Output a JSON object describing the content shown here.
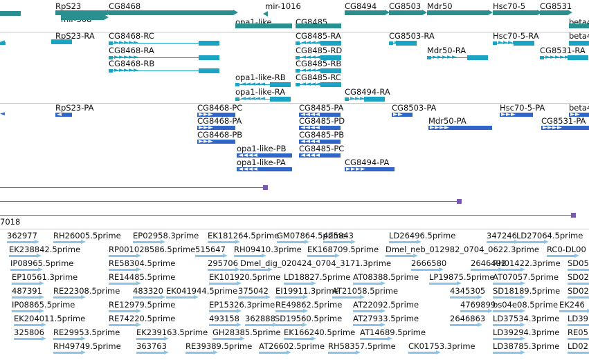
{
  "genes": [
    {
      "label": "RpS23",
      "color": "#2a8f8f"
    },
    {
      "label": "mir-308",
      "color": "#2a8f8f"
    },
    {
      "label": "CG8468",
      "color": "#2a8f8f"
    },
    {
      "label": "mir-1016",
      "color": "#2a8f8f"
    },
    {
      "label": "CG8494",
      "color": "#2a8f8f"
    },
    {
      "label": "CG8503",
      "color": "#2a8f8f"
    },
    {
      "label": "Mdr50",
      "color": "#2a8f8f"
    },
    {
      "label": "Hsc70-5",
      "color": "#2a8f8f"
    },
    {
      "label": "CG8531",
      "color": "#2a8f8f"
    },
    {
      "label": "opa1-like",
      "color": "#2a8f8f"
    },
    {
      "label": "CG8485",
      "color": "#2a8f8f"
    },
    {
      "label": "beta4",
      "color": "#2a8f8f"
    }
  ],
  "transcripts": [
    {
      "label": "RpS23-RA"
    },
    {
      "label": "CG8468-RC"
    },
    {
      "label": "CG8485-RA"
    },
    {
      "label": "CG8503-RA"
    },
    {
      "label": "Hsc70-5-RA"
    },
    {
      "label": "beta4"
    },
    {
      "label": "CG8468-RA"
    },
    {
      "label": "CG8485-RD"
    },
    {
      "label": "Mdr50-RA"
    },
    {
      "label": "CG8531-RA"
    },
    {
      "label": "CG8468-RB"
    },
    {
      "label": "CG8485-RB"
    },
    {
      "label": "opa1-like-RB"
    },
    {
      "label": "CG8485-RC"
    },
    {
      "label": "opa1-like-RA"
    },
    {
      "label": "CG8494-RA"
    }
  ],
  "proteins": [
    {
      "label": "RpS23-PA"
    },
    {
      "label": "CG8468-PC"
    },
    {
      "label": "CG8485-PA"
    },
    {
      "label": "CG8503-PA"
    },
    {
      "label": "Hsc70-5-PA"
    },
    {
      "label": "beta4"
    },
    {
      "label": "CG8468-PA"
    },
    {
      "label": "CG8485-PD"
    },
    {
      "label": "Mdr50-PA"
    },
    {
      "label": "CG8531-PA"
    },
    {
      "label": "CG8468-PB"
    },
    {
      "label": "CG8485-PB"
    },
    {
      "label": "opa1-like-PB"
    },
    {
      "label": "CG8485-PC"
    },
    {
      "label": "opa1-like-PA"
    },
    {
      "label": "CG8494-PA"
    }
  ],
  "scaffold_label": "7018",
  "ests": [
    {
      "label": "362977"
    },
    {
      "label": "RH26005.5prime"
    },
    {
      "label": "EP02958.3prime"
    },
    {
      "label": "EK181264.5prime"
    },
    {
      "label": "GM07864.5prime"
    },
    {
      "label": "425843"
    },
    {
      "label": "LD26496.5prime"
    },
    {
      "label": "347246"
    },
    {
      "label": "LD27064.5prime"
    },
    {
      "label": "EK238842.5prime"
    },
    {
      "label": "RP001028586.5prime"
    },
    {
      "label": "515647"
    },
    {
      "label": "RH09410.3prime"
    },
    {
      "label": "EK168709.5prime"
    },
    {
      "label": "Dmel_neb_012982_0704_0622.3prime"
    },
    {
      "label": "RC0-DL00"
    },
    {
      "label": "IP08965.5prime"
    },
    {
      "label": "RE58304.5prime"
    },
    {
      "label": "295706"
    },
    {
      "label": "Dmel_dig_020424_0704_3171.3prime"
    },
    {
      "label": "2666580"
    },
    {
      "label": "2646492"
    },
    {
      "label": "RH01422.3prime"
    },
    {
      "label": "SD05"
    },
    {
      "label": "EP10561.3prime"
    },
    {
      "label": "RE14485.5prime"
    },
    {
      "label": "EK101920.5prime"
    },
    {
      "label": "LD18827.5prime"
    },
    {
      "label": "AT08388.5prime"
    },
    {
      "label": "LP19875.5prime"
    },
    {
      "label": "AT07057.5prime"
    },
    {
      "label": "SD02"
    },
    {
      "label": "487391"
    },
    {
      "label": "RE22308.5prime"
    },
    {
      "label": "483320"
    },
    {
      "label": "EK041944.5prime"
    },
    {
      "label": "375042"
    },
    {
      "label": "EI19911.3prime"
    },
    {
      "label": "AT21058.5prime"
    },
    {
      "label": "4345305"
    },
    {
      "label": "SD18189.5prime"
    },
    {
      "label": "SD02"
    },
    {
      "label": "IP08865.5prime"
    },
    {
      "label": "RE12979.5prime"
    },
    {
      "label": "EP15326.3prime"
    },
    {
      "label": "RE49862.5prime"
    },
    {
      "label": "AT22092.5prime"
    },
    {
      "label": "4769899"
    },
    {
      "label": "bs04e08.5prime"
    },
    {
      "label": "EK246"
    },
    {
      "label": "EK204011.5prime"
    },
    {
      "label": "RE74220.5prime"
    },
    {
      "label": "493158"
    },
    {
      "label": "362888"
    },
    {
      "label": "SD19560.5prime"
    },
    {
      "label": "AT27933.5prime"
    },
    {
      "label": "2646863"
    },
    {
      "label": "LD37534.3prime"
    },
    {
      "label": "LD39"
    },
    {
      "label": "325806"
    },
    {
      "label": "RE29953.5prime"
    },
    {
      "label": "EK239163.5prime"
    },
    {
      "label": "GH28385.5prime"
    },
    {
      "label": "EK166240.5prime"
    },
    {
      "label": "AT14689.5prime"
    },
    {
      "label": "LD39294.3prime"
    },
    {
      "label": "RE05"
    },
    {
      "label": "RH49749.5prime"
    },
    {
      "label": "363763"
    },
    {
      "label": "RE39389.5prime"
    },
    {
      "label": "AT26602.5prime"
    },
    {
      "label": "RH58357.5prime"
    },
    {
      "label": "CK01753.3prime"
    },
    {
      "label": "LD38785.3prime"
    },
    {
      "label": "LD02"
    }
  ],
  "colors": {
    "gene": "#2a8f8f",
    "transcript": "#1ba3c4",
    "protein": "#2f66c8",
    "alignment": "#7a5ab0",
    "est": "#8fc3e6"
  }
}
